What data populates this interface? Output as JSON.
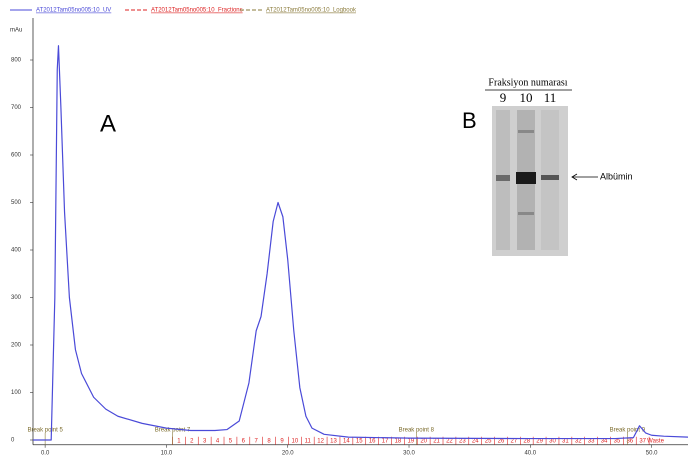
{
  "chart_data": {
    "type": "line",
    "y_unit": "mAu",
    "x": [
      -1,
      0.5,
      0.8,
      1.0,
      1.1,
      1.3,
      1.6,
      2.0,
      2.5,
      3,
      4,
      5,
      6,
      8,
      10,
      12,
      14,
      15,
      16,
      16.8,
      17.4,
      17.8,
      18.3,
      18.8,
      19.2,
      19.6,
      20.0,
      20.5,
      21,
      21.5,
      22,
      23,
      25,
      30,
      40,
      47,
      48.5,
      49,
      49.5,
      50,
      51,
      53
    ],
    "series": [
      {
        "name": "AT2012Tam05no005:10_UV",
        "color": "#4a4ad8",
        "values": [
          0,
          0,
          300,
          780,
          830,
          700,
          480,
          300,
          190,
          140,
          90,
          65,
          50,
          35,
          25,
          20,
          20,
          22,
          40,
          120,
          230,
          260,
          350,
          460,
          500,
          470,
          380,
          230,
          110,
          50,
          25,
          12,
          6,
          4,
          3,
          3,
          5,
          30,
          15,
          10,
          8,
          6
        ]
      }
    ],
    "other_traces": [
      {
        "name": "AT2012Tam05no005:10_Fractions",
        "color": "#d22"
      },
      {
        "name": "AT2012Tam05no005:10_Logbook",
        "color": "#8a7a3a"
      }
    ],
    "xlim": [
      -1,
      53
    ],
    "ylim": [
      -10,
      880
    ],
    "xticks": [
      {
        "value": 0,
        "label": "0.0"
      },
      {
        "value": 10,
        "label": "10.0"
      },
      {
        "value": 20,
        "label": "20.0"
      },
      {
        "value": 30,
        "label": "30.0"
      },
      {
        "value": 40,
        "label": "40.0"
      },
      {
        "value": 50,
        "label": "50.0"
      }
    ],
    "yticks": [
      0,
      100,
      200,
      300,
      400,
      500,
      600,
      700,
      800
    ],
    "break_points": [
      {
        "label": "Break point 5",
        "x": 0
      },
      {
        "label": "Break point 7",
        "x": 10.5
      },
      {
        "label": "Break point 8",
        "x": 30.6
      },
      {
        "label": "Break point 9",
        "x": 48
      }
    ],
    "fractions": [
      "1",
      "2",
      "3",
      "4",
      "5",
      "6",
      "7",
      "8",
      "9",
      "10",
      "11",
      "12",
      "13",
      "14",
      "15",
      "16",
      "17",
      "18",
      "19",
      "20",
      "21",
      "22",
      "23",
      "24",
      "25",
      "26",
      "27",
      "28",
      "29",
      "30",
      "31",
      "32",
      "33",
      "34",
      "35",
      "36",
      "37",
      "Waste"
    ],
    "annotations": [
      "A",
      "B"
    ],
    "inset": {
      "title": "Fraksiyon numarası",
      "lanes": [
        "9",
        "10",
        "11"
      ],
      "band_label": "Albümin"
    }
  }
}
